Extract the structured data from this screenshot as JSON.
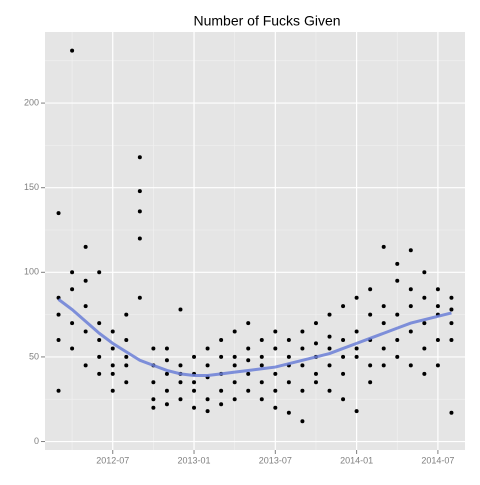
{
  "chart_data": {
    "type": "scatter",
    "title": "Number of Fucks Given",
    "xlim": [
      "2012-02",
      "2014-09"
    ],
    "xticks": [
      "2012-07",
      "2013-01",
      "2013-07",
      "2014-01",
      "2014-07"
    ],
    "ylim": [
      -5,
      242
    ],
    "yticks": [
      0,
      50,
      100,
      150,
      200
    ],
    "grid": true,
    "minor_grid": true,
    "series": [
      {
        "color": "#000000",
        "x": [
          "2012-03",
          "2012-03",
          "2012-03",
          "2012-03",
          "2012-03",
          "2012-04",
          "2012-04",
          "2012-04",
          "2012-04",
          "2012-04",
          "2012-05",
          "2012-05",
          "2012-05",
          "2012-05",
          "2012-05",
          "2012-06",
          "2012-06",
          "2012-06",
          "2012-06",
          "2012-06",
          "2012-07",
          "2012-07",
          "2012-07",
          "2012-07",
          "2012-07",
          "2012-08",
          "2012-08",
          "2012-08",
          "2012-08",
          "2012-08",
          "2012-09",
          "2012-09",
          "2012-09",
          "2012-09",
          "2012-09",
          "2012-10",
          "2012-10",
          "2012-10",
          "2012-10",
          "2012-10",
          "2012-11",
          "2012-11",
          "2012-11",
          "2012-11",
          "2012-11",
          "2012-12",
          "2012-12",
          "2012-12",
          "2012-12",
          "2012-12",
          "2013-01",
          "2013-01",
          "2013-01",
          "2013-01",
          "2013-01",
          "2013-02",
          "2013-02",
          "2013-02",
          "2013-02",
          "2013-02",
          "2013-03",
          "2013-03",
          "2013-03",
          "2013-03",
          "2013-03",
          "2013-04",
          "2013-04",
          "2013-04",
          "2013-04",
          "2013-04",
          "2013-05",
          "2013-05",
          "2013-05",
          "2013-05",
          "2013-05",
          "2013-06",
          "2013-06",
          "2013-06",
          "2013-06",
          "2013-06",
          "2013-07",
          "2013-07",
          "2013-07",
          "2013-07",
          "2013-07",
          "2013-08",
          "2013-08",
          "2013-08",
          "2013-08",
          "2013-08",
          "2013-09",
          "2013-09",
          "2013-09",
          "2013-09",
          "2013-09",
          "2013-10",
          "2013-10",
          "2013-10",
          "2013-10",
          "2013-10",
          "2013-11",
          "2013-11",
          "2013-11",
          "2013-11",
          "2013-11",
          "2013-12",
          "2013-12",
          "2013-12",
          "2013-12",
          "2013-12",
          "2014-01",
          "2014-01",
          "2014-01",
          "2014-01",
          "2014-01",
          "2014-02",
          "2014-02",
          "2014-02",
          "2014-02",
          "2014-02",
          "2014-03",
          "2014-03",
          "2014-03",
          "2014-03",
          "2014-03",
          "2014-04",
          "2014-04",
          "2014-04",
          "2014-04",
          "2014-04",
          "2014-05",
          "2014-05",
          "2014-05",
          "2014-05",
          "2014-05",
          "2014-06",
          "2014-06",
          "2014-06",
          "2014-06",
          "2014-06",
          "2014-07",
          "2014-07",
          "2014-07",
          "2014-07",
          "2014-07",
          "2014-08",
          "2014-08",
          "2014-08",
          "2014-08",
          "2014-08"
        ],
        "values": [
          85,
          135,
          30,
          60,
          75,
          231,
          100,
          70,
          90,
          55,
          95,
          65,
          80,
          45,
          115,
          70,
          50,
          60,
          40,
          100,
          55,
          45,
          30,
          65,
          40,
          60,
          35,
          50,
          75,
          45,
          168,
          148,
          136,
          120,
          85,
          45,
          25,
          35,
          55,
          20,
          40,
          30,
          48,
          22,
          55,
          35,
          45,
          25,
          78,
          40,
          30,
          40,
          20,
          50,
          35,
          45,
          25,
          55,
          38,
          18,
          40,
          60,
          30,
          50,
          22,
          50,
          65,
          35,
          45,
          25,
          55,
          40,
          70,
          30,
          48,
          45,
          35,
          60,
          25,
          50,
          40,
          55,
          30,
          65,
          20,
          50,
          35,
          60,
          17,
          45,
          45,
          65,
          30,
          55,
          12,
          50,
          40,
          70,
          35,
          58,
          55,
          45,
          75,
          30,
          62,
          60,
          40,
          80,
          25,
          50,
          65,
          18,
          50,
          85,
          55,
          60,
          75,
          45,
          90,
          35,
          70,
          115,
          55,
          80,
          45,
          75,
          60,
          95,
          105,
          50,
          80,
          113,
          65,
          90,
          45,
          70,
          100,
          55,
          85,
          40,
          75,
          60,
          90,
          45,
          80,
          85,
          17,
          70,
          60,
          78
        ]
      },
      {
        "color": "#6b7fd7",
        "line": true,
        "x": [
          "2012-03",
          "2012-04",
          "2012-05",
          "2012-06",
          "2012-07",
          "2012-08",
          "2012-09",
          "2012-10",
          "2012-11",
          "2012-12",
          "2013-01",
          "2013-02",
          "2013-03",
          "2013-04",
          "2013-05",
          "2013-06",
          "2013-07",
          "2013-08",
          "2013-09",
          "2013-10",
          "2013-11",
          "2013-12",
          "2014-01",
          "2014-02",
          "2014-03",
          "2014-04",
          "2014-05",
          "2014-06",
          "2014-07",
          "2014-08"
        ],
        "values": [
          84,
          78,
          71,
          64,
          58,
          53,
          48,
          45,
          42,
          40,
          39,
          39,
          40,
          41,
          42,
          43,
          44,
          46,
          48,
          50,
          52,
          55,
          58,
          61,
          64,
          67,
          70,
          72,
          74,
          76
        ]
      }
    ]
  }
}
